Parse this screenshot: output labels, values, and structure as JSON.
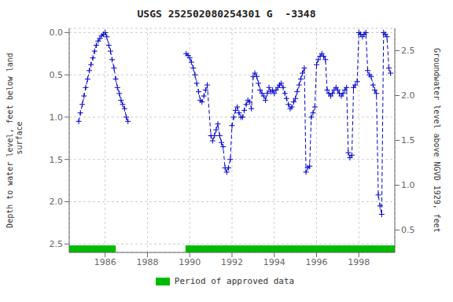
{
  "chart_data": {
    "type": "line",
    "title": "USGS 252502080254301 G  -3348",
    "ylabel": "Depth to water level, feet below land\n surface",
    "y2label": "Groundwater level above NGVD 1929, feet",
    "xlim": [
      1984.3,
      1999.7
    ],
    "xticks": [
      1986,
      1988,
      1990,
      1992,
      1994,
      1996,
      1998
    ],
    "ylim": [
      2.6,
      -0.05
    ],
    "yticks": [
      {
        "value": 0,
        "label": "0.0"
      },
      0.5,
      {
        "value": 1,
        "label": "1.0"
      },
      1.5,
      {
        "value": 2,
        "label": "2.0"
      },
      2.5
    ],
    "y2lim": [
      0.25,
      2.75
    ],
    "y2ticks": [
      0.5,
      {
        "value": 1,
        "label": "1.0"
      },
      1.5,
      {
        "value": 2,
        "label": "2.0"
      },
      2.5
    ],
    "grid": true,
    "color": "#0000cc",
    "marker": "+",
    "line_style": "dashed",
    "approved_periods": [
      [
        1984.3,
        1986.5
      ],
      [
        1989.8,
        1999.7
      ]
    ],
    "approved_color": "#00bb00",
    "approved_label": "Period of approved data",
    "x": [
      1984.75,
      1984.83,
      1984.92,
      1985.0,
      1985.08,
      1985.17,
      1985.25,
      1985.33,
      1985.42,
      1985.5,
      1985.58,
      1985.67,
      1985.75,
      1985.83,
      1985.92,
      1986.0,
      1986.08,
      1986.17,
      1986.25,
      1986.33,
      1986.42,
      1986.5,
      1986.58,
      1986.67,
      1986.75,
      1986.83,
      1986.92,
      1987.0,
      1987.08,
      null,
      1989.83,
      1989.92,
      1990.0,
      1990.08,
      1990.17,
      1990.25,
      1990.33,
      1990.42,
      1990.5,
      1990.58,
      1990.67,
      1990.75,
      1990.83,
      1991.0,
      1991.08,
      1991.17,
      1991.25,
      1991.33,
      1991.42,
      1991.5,
      1991.58,
      1991.67,
      1991.75,
      1991.83,
      1991.92,
      1992.0,
      1992.08,
      1992.17,
      1992.25,
      1992.33,
      1992.42,
      1992.5,
      1992.58,
      1992.67,
      1992.75,
      1992.83,
      1992.92,
      1993.0,
      1993.08,
      1993.17,
      1993.25,
      1993.33,
      1993.42,
      1993.5,
      1993.58,
      1993.67,
      1993.75,
      1993.83,
      1993.92,
      1994.0,
      1994.08,
      1994.17,
      1994.25,
      1994.33,
      1994.42,
      1994.5,
      1994.58,
      1994.67,
      1994.75,
      1994.83,
      1994.92,
      1995.0,
      1995.08,
      1995.17,
      1995.25,
      1995.33,
      1995.42,
      1995.5,
      1995.58,
      1995.67,
      1995.75,
      1995.83,
      1995.92,
      1996.0,
      1996.08,
      1996.17,
      1996.25,
      1996.33,
      1996.42,
      1996.5,
      1996.58,
      1996.67,
      1996.75,
      1996.83,
      1996.92,
      1997.0,
      1997.08,
      1997.17,
      1997.25,
      1997.33,
      1997.42,
      1997.5,
      1997.58,
      1997.67,
      1997.75,
      1997.83,
      1997.92,
      1998.0,
      1998.08,
      1998.17,
      1998.25,
      1998.33,
      1998.42,
      1998.5,
      1998.58,
      1998.67,
      1998.75,
      1998.83,
      1998.92,
      1999.0,
      1999.08,
      1999.17,
      1999.25,
      1999.33,
      1999.42,
      1999.5
    ],
    "values": [
      1.05,
      0.95,
      0.85,
      0.75,
      0.65,
      0.55,
      0.45,
      0.38,
      0.3,
      0.22,
      0.15,
      0.1,
      0.07,
      0.04,
      0.02,
      0.0,
      0.05,
      0.15,
      0.22,
      0.32,
      0.42,
      0.55,
      0.65,
      0.72,
      0.8,
      0.85,
      0.9,
      1.0,
      1.05,
      null,
      0.25,
      0.27,
      0.3,
      0.35,
      0.42,
      0.5,
      0.6,
      0.7,
      0.8,
      0.82,
      0.75,
      0.68,
      0.62,
      1.22,
      1.28,
      1.22,
      1.15,
      1.08,
      1.22,
      1.3,
      1.35,
      1.6,
      1.65,
      1.6,
      1.5,
      1.1,
      1.0,
      0.92,
      0.88,
      0.95,
      1.0,
      1.0,
      0.92,
      0.85,
      0.8,
      0.82,
      0.9,
      0.52,
      0.48,
      0.52,
      0.6,
      0.68,
      0.72,
      0.75,
      0.8,
      0.72,
      0.65,
      0.7,
      0.68,
      0.72,
      0.68,
      0.65,
      0.62,
      0.6,
      0.65,
      0.72,
      0.78,
      0.85,
      0.9,
      0.88,
      0.82,
      0.78,
      0.7,
      0.62,
      0.55,
      0.48,
      0.42,
      1.65,
      1.6,
      1.58,
      1.0,
      0.95,
      0.88,
      0.38,
      0.32,
      0.28,
      0.25,
      0.28,
      0.32,
      0.68,
      0.72,
      0.75,
      0.72,
      0.68,
      0.65,
      0.68,
      0.72,
      0.75,
      0.72,
      0.68,
      0.65,
      1.42,
      1.48,
      1.45,
      0.65,
      0.62,
      0.58,
      0.0,
      0.02,
      0.05,
      0.02,
      0.0,
      0.45,
      0.5,
      0.52,
      0.62,
      0.68,
      0.72,
      1.92,
      2.05,
      2.15,
      0.0,
      0.02,
      0.05,
      0.42,
      0.48
    ]
  }
}
